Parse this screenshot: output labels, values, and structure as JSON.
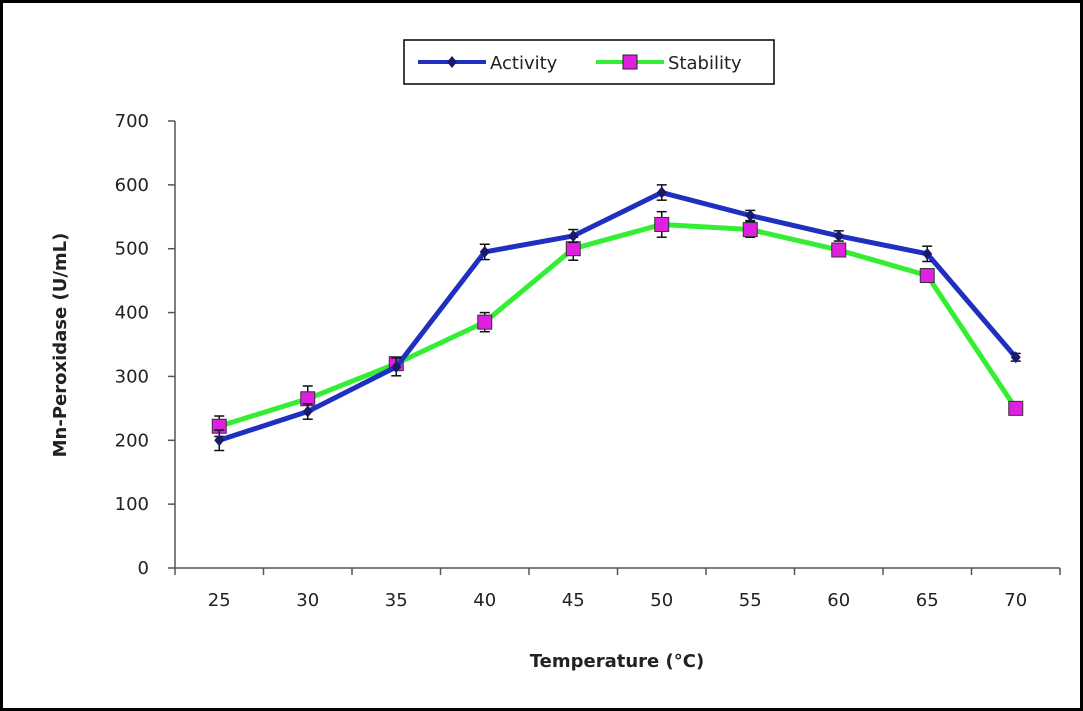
{
  "chart_data": {
    "type": "line",
    "title": "",
    "xlabel": "Temperature (°C)",
    "ylabel": "Mn-Peroxidase (U/mL)",
    "categories": [
      "25",
      "30",
      "35",
      "40",
      "45",
      "50",
      "55",
      "60",
      "65",
      "70"
    ],
    "ylim": [
      0,
      700
    ],
    "yticks": [
      "0",
      "100",
      "200",
      "300",
      "400",
      "500",
      "600",
      "700"
    ],
    "grid": false,
    "legend_position": "top-center",
    "series": [
      {
        "name": "Activity",
        "color": "#1f2fbf",
        "marker": "diamond",
        "values": [
          200,
          245,
          315,
          495,
          520,
          588,
          552,
          520,
          492,
          330
        ],
        "errors": [
          16,
          12,
          14,
          12,
          10,
          12,
          8,
          8,
          12,
          6
        ]
      },
      {
        "name": "Stability",
        "color": "#33ee33",
        "marker": "square",
        "marker_fill": "#e020e0",
        "values": [
          222,
          265,
          320,
          385,
          500,
          538,
          530,
          498,
          458,
          250
        ],
        "errors": [
          16,
          20,
          8,
          15,
          18,
          20,
          12,
          8,
          8,
          4
        ]
      }
    ]
  }
}
